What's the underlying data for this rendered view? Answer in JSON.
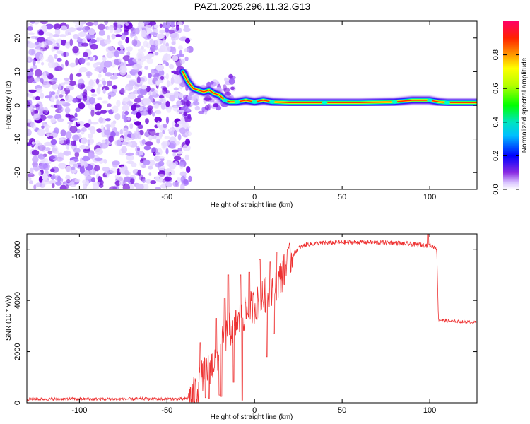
{
  "figure": {
    "title": "PAZ1.2025.296.11.32.G13"
  },
  "chart_data": [
    {
      "type": "heatmap",
      "title": "PAZ1.2025.296.11.32.G13",
      "xlabel": "Height of straight line (km)",
      "ylabel": "Frequency (Hz)",
      "xlim": [
        -130,
        127
      ],
      "ylim": [
        -25,
        25
      ],
      "xticks": [
        -100,
        -50,
        0,
        50,
        100
      ],
      "yticks": [
        -20,
        -10,
        0,
        10,
        20
      ],
      "noise_region_x": [
        -130,
        -40
      ],
      "signal_track": {
        "x": [
          -41,
          -38,
          -35,
          -32,
          -29,
          -26,
          -23,
          -20,
          -17,
          -14,
          -10,
          -5,
          0,
          5,
          10,
          20,
          40,
          60,
          80,
          90,
          100,
          105,
          110,
          127
        ],
        "y": [
          10,
          7,
          5,
          4.5,
          4,
          4.5,
          3.5,
          3,
          1.5,
          1,
          1,
          1.5,
          1,
          1.5,
          1,
          0.8,
          0.8,
          0.8,
          1,
          1.5,
          1.5,
          1,
          0.8,
          0.8
        ]
      },
      "colorbar": {
        "label": "Normalized spectral amplitude",
        "range": [
          0,
          1
        ],
        "ticks": [
          0,
          0.2,
          0.4,
          0.6,
          0.8
        ],
        "tick_labels": [
          "0.0",
          "0.2",
          "0.4",
          "0.6",
          "0.8"
        ]
      }
    },
    {
      "type": "line",
      "xlabel": "Height of straight line (km)",
      "ylabel": "SNR (10 * v/v)",
      "xlim": [
        -130,
        127
      ],
      "ylim": [
        0,
        6600
      ],
      "xticks": [
        -100,
        -50,
        0,
        50,
        100
      ],
      "yticks": [
        0,
        2000,
        4000,
        6000
      ],
      "series": [
        {
          "name": "SNR",
          "color": "#ee3333",
          "envelope": {
            "x": [
              -130,
              -40,
              -36,
              -33,
              -30,
              -27,
              -24,
              -20,
              -16,
              -12,
              -8,
              -5,
              -2,
              0,
              3,
              6,
              10,
              14,
              18,
              20,
              25,
              30,
              40,
              60,
              80,
              90,
              100,
              104,
              105,
              110,
              127
            ],
            "y": [
              150,
              150,
              200,
              500,
              1000,
              1300,
              1500,
              2000,
              2700,
              3000,
              3200,
              3500,
              3700,
              3800,
              4000,
              4200,
              4500,
              4800,
              5300,
              5600,
              6050,
              6200,
              6250,
              6280,
              6250,
              6200,
              6150,
              6050,
              3250,
              3200,
              3150
            ]
          },
          "spikes": [
            {
              "x": -31,
              "y": 2350
            },
            {
              "x": -22,
              "y": 3300
            },
            {
              "x": -17,
              "y": 4100
            },
            {
              "x": -15,
              "y": 5000
            },
            {
              "x": -8,
              "y": 5000
            },
            {
              "x": -3,
              "y": 5100
            },
            {
              "x": 3,
              "y": 5600
            },
            {
              "x": 9,
              "y": 5500
            },
            {
              "x": 13,
              "y": 5900
            },
            {
              "x": 19,
              "y": 6000
            },
            {
              "x": 99,
              "y": 6600
            }
          ],
          "dips": [
            {
              "x": -28,
              "y": 200
            },
            {
              "x": -26,
              "y": 150
            },
            {
              "x": -20,
              "y": 300
            },
            {
              "x": -19,
              "y": 250
            },
            {
              "x": -12,
              "y": 800
            },
            {
              "x": -7,
              "y": 100
            },
            {
              "x": 7,
              "y": 1800
            },
            {
              "x": 11,
              "y": 2700
            }
          ]
        }
      ]
    }
  ]
}
